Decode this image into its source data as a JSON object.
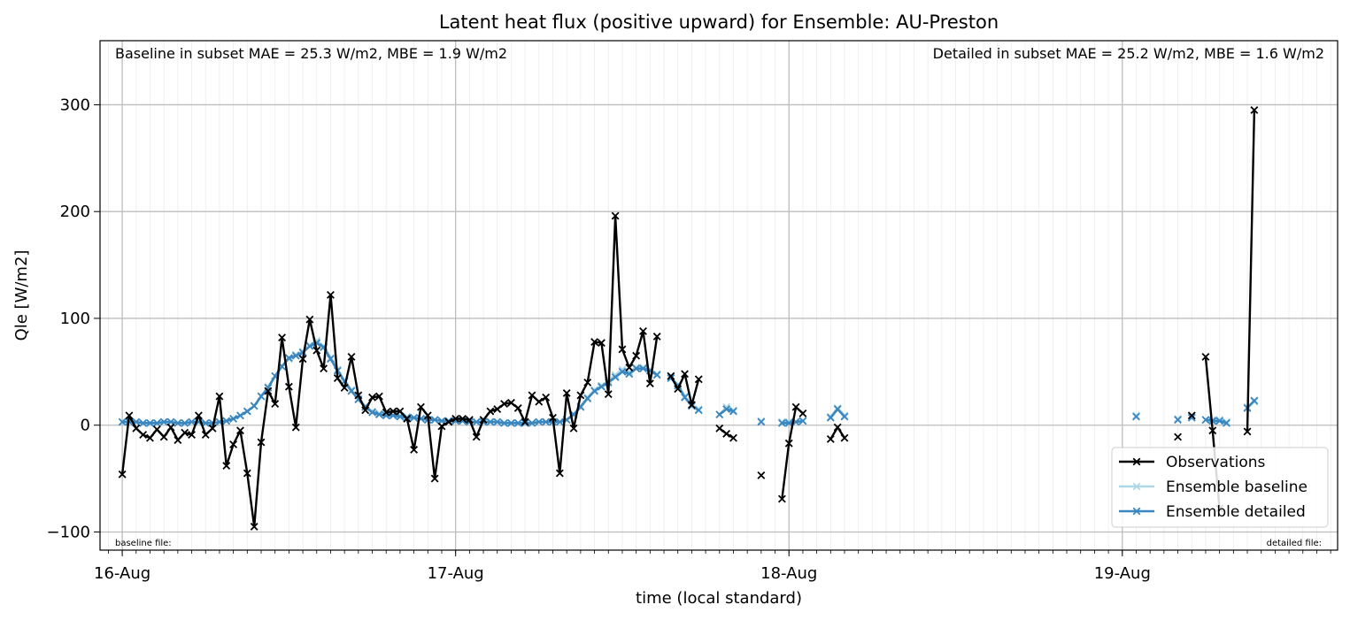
{
  "chart_data": {
    "type": "line",
    "title": "Latent heat flux (positive upward) for Ensemble: AU-Preston",
    "xlabel": "time (local standard)",
    "ylabel": "Qle [W/m2]",
    "x_units": "hours since 16-Aug 00:00 (local standard)",
    "xlim": [
      -1.6,
      87.5
    ],
    "ylim": [
      -117,
      360
    ],
    "yticks": [
      -100,
      0,
      100,
      200,
      300
    ],
    "ytick_labels": [
      "−100",
      "0",
      "100",
      "200",
      "300"
    ],
    "xticks": [
      0,
      24,
      48,
      72
    ],
    "xtick_labels": [
      "16-Aug",
      "17-Aug",
      "18-Aug",
      "19-Aug"
    ],
    "minor_tick_step_hours": 1,
    "grid": true,
    "legend_position": "lower-right",
    "annotations": {
      "top_left": "Baseline in subset MAE = 25.3 W/m2, MBE = 1.9 W/m2",
      "top_right": "Detailed in subset MAE = 25.2 W/m2, MBE = 1.6 W/m2",
      "bottom_left": "baseline file:",
      "bottom_right": "detailed file:"
    },
    "series": [
      {
        "name": "Observations",
        "color": "#000000",
        "marker": "x",
        "points": [
          [
            0,
            -46
          ],
          [
            0.5,
            9
          ],
          [
            1,
            -3
          ],
          [
            1.5,
            -9
          ],
          [
            2,
            -12
          ],
          [
            2.5,
            -4
          ],
          [
            3,
            -11
          ],
          [
            3.5,
            -2
          ],
          [
            4,
            -14
          ],
          [
            4.5,
            -7
          ],
          [
            5,
            -9
          ],
          [
            5.5,
            9
          ],
          [
            6,
            -9
          ],
          [
            6.5,
            -3
          ],
          [
            7,
            27
          ],
          [
            7.5,
            -38
          ],
          [
            8,
            -18
          ],
          [
            8.5,
            -5
          ],
          [
            9,
            -45
          ],
          [
            9.5,
            -95
          ],
          [
            10,
            -16
          ],
          [
            10.5,
            32
          ],
          [
            11,
            20
          ],
          [
            11.5,
            82
          ],
          [
            12,
            36
          ],
          [
            12.5,
            -2
          ],
          [
            13,
            62
          ],
          [
            13.5,
            99
          ],
          [
            14,
            70
          ],
          [
            14.5,
            53
          ],
          [
            15,
            122
          ],
          [
            15.5,
            44
          ],
          [
            16,
            35
          ],
          [
            16.5,
            64
          ],
          [
            17,
            28
          ],
          [
            17.5,
            14
          ],
          [
            18,
            26
          ],
          [
            18.5,
            27
          ],
          [
            19,
            12
          ],
          [
            19.5,
            13
          ],
          [
            20,
            13
          ],
          [
            20.5,
            6
          ],
          [
            21,
            -23
          ],
          [
            21.5,
            17
          ],
          [
            22,
            9
          ],
          [
            22.5,
            -50
          ],
          [
            23,
            -1
          ],
          [
            23.5,
            3
          ],
          [
            24,
            6
          ],
          [
            24.5,
            6
          ],
          [
            25,
            5
          ],
          [
            25.5,
            -11
          ],
          [
            26,
            5
          ],
          [
            26.5,
            13
          ],
          [
            27,
            15
          ],
          [
            27.5,
            20
          ],
          [
            28,
            21
          ],
          [
            28.5,
            16
          ],
          [
            29,
            3
          ],
          [
            29.5,
            28
          ],
          [
            30,
            22
          ],
          [
            30.5,
            26
          ],
          [
            31,
            7
          ],
          [
            31.5,
            -45
          ],
          [
            32,
            30
          ],
          [
            32.5,
            -3
          ],
          [
            33,
            28
          ],
          [
            33.5,
            40
          ],
          [
            34,
            78
          ],
          [
            34.5,
            77
          ],
          [
            35,
            29
          ],
          [
            35.5,
            196
          ],
          [
            36,
            71
          ],
          [
            36.5,
            54
          ],
          [
            37,
            65
          ],
          [
            37.5,
            88
          ],
          [
            38,
            39
          ],
          [
            38.5,
            83
          ],
          null,
          [
            39.5,
            46
          ],
          [
            40,
            34
          ],
          [
            40.5,
            48
          ],
          [
            41,
            19
          ],
          [
            41.5,
            43
          ],
          null,
          [
            43,
            -3
          ],
          [
            43.5,
            -8
          ],
          [
            44,
            -12
          ],
          null,
          [
            46,
            -47
          ],
          null,
          [
            47.5,
            -69
          ],
          [
            48,
            -17
          ],
          [
            48.5,
            17
          ],
          [
            49,
            11
          ],
          null,
          [
            51,
            -13
          ],
          [
            51.5,
            -2
          ],
          [
            52,
            -12
          ],
          null,
          [
            76,
            -11
          ],
          null,
          [
            77,
            9
          ],
          null,
          [
            78,
            64
          ],
          [
            78.5,
            -5
          ],
          [
            79,
            -78
          ],
          null,
          [
            81,
            -6
          ],
          [
            81.5,
            295
          ]
        ]
      },
      {
        "name": "Ensemble baseline",
        "color": "#add8e6",
        "marker": "x",
        "points": [
          [
            0,
            3
          ],
          [
            0.5,
            4
          ],
          [
            1,
            3
          ],
          [
            1.5,
            2
          ],
          [
            2,
            2
          ],
          [
            2.5,
            2
          ],
          [
            3,
            3
          ],
          [
            3.5,
            3
          ],
          [
            4,
            2
          ],
          [
            4.5,
            2
          ],
          [
            5,
            3
          ],
          [
            5.5,
            3
          ],
          [
            6,
            2
          ],
          [
            6.5,
            2
          ],
          [
            7,
            3
          ],
          [
            7.5,
            4
          ],
          [
            8,
            6
          ],
          [
            8.5,
            9
          ],
          [
            9,
            13
          ],
          [
            9.5,
            18
          ],
          [
            10,
            27
          ],
          [
            10.5,
            36
          ],
          [
            11,
            46
          ],
          [
            11.5,
            55
          ],
          [
            12,
            62
          ],
          [
            12.5,
            66
          ],
          [
            13,
            69
          ],
          [
            13.5,
            75
          ],
          [
            14,
            79
          ],
          [
            14.5,
            74
          ],
          [
            15,
            63
          ],
          [
            15.5,
            52
          ],
          [
            16,
            42
          ],
          [
            16.5,
            33
          ],
          [
            17,
            25
          ],
          [
            17.5,
            18
          ],
          [
            18,
            13
          ],
          [
            18.5,
            11
          ],
          [
            19,
            10
          ],
          [
            19.5,
            10
          ],
          [
            20,
            9
          ],
          [
            20.5,
            8
          ],
          [
            21,
            7
          ],
          [
            21.5,
            6
          ],
          [
            22,
            5
          ],
          [
            22.5,
            5
          ],
          [
            23,
            4
          ],
          [
            23.5,
            4
          ],
          [
            24,
            4
          ],
          [
            24.5,
            4
          ],
          [
            25,
            3
          ],
          [
            25.5,
            3
          ],
          [
            26,
            3
          ],
          [
            26.5,
            3
          ],
          [
            27,
            3
          ],
          [
            27.5,
            2
          ],
          [
            28,
            2
          ],
          [
            28.5,
            2
          ],
          [
            29,
            2
          ],
          [
            29.5,
            2
          ],
          [
            30,
            3
          ],
          [
            30.5,
            3
          ],
          [
            31,
            3
          ],
          [
            31.5,
            3
          ],
          [
            32,
            5
          ],
          [
            32.5,
            10
          ],
          [
            33,
            18
          ],
          [
            33.5,
            26
          ],
          [
            34,
            33
          ],
          [
            34.5,
            37
          ],
          [
            35,
            42
          ],
          [
            35.5,
            47
          ],
          [
            36,
            52
          ],
          [
            36.5,
            50
          ],
          [
            37,
            54
          ],
          [
            37.5,
            54
          ],
          [
            38,
            52
          ],
          [
            38.5,
            48
          ],
          null,
          [
            39.5,
            45
          ],
          [
            40,
            38
          ],
          [
            40.5,
            27
          ],
          [
            41,
            19
          ],
          [
            41.5,
            15
          ],
          null,
          [
            43,
            10
          ],
          [
            43.5,
            17
          ],
          [
            44,
            14
          ],
          null,
          [
            46,
            4
          ],
          null,
          [
            47.5,
            3
          ],
          [
            48,
            3
          ],
          [
            48.5,
            3
          ],
          [
            49,
            4
          ],
          null,
          [
            51,
            8
          ],
          [
            51.5,
            16
          ],
          [
            52,
            9
          ],
          null,
          [
            73,
            9
          ],
          null,
          [
            76,
            6
          ],
          null,
          [
            77,
            8
          ],
          null,
          [
            78,
            5
          ],
          [
            78.5,
            5
          ],
          [
            79,
            5
          ],
          [
            79.5,
            3
          ],
          null,
          [
            81,
            17
          ],
          [
            81.5,
            22
          ]
        ]
      },
      {
        "name": "Ensemble detailed",
        "color": "#3a87c0",
        "marker": "x",
        "points": [
          [
            0,
            3
          ],
          [
            0.5,
            3
          ],
          [
            1,
            3
          ],
          [
            1.5,
            2
          ],
          [
            2,
            2
          ],
          [
            2.5,
            2
          ],
          [
            3,
            3
          ],
          [
            3.5,
            3
          ],
          [
            4,
            2
          ],
          [
            4.5,
            2
          ],
          [
            5,
            3
          ],
          [
            5.5,
            3
          ],
          [
            6,
            2
          ],
          [
            6.5,
            2
          ],
          [
            7,
            3
          ],
          [
            7.5,
            4
          ],
          [
            8,
            6
          ],
          [
            8.5,
            9
          ],
          [
            9,
            13
          ],
          [
            9.5,
            18
          ],
          [
            10,
            27
          ],
          [
            10.5,
            35
          ],
          [
            11,
            46
          ],
          [
            11.5,
            55
          ],
          [
            12,
            63
          ],
          [
            12.5,
            65
          ],
          [
            13,
            68
          ],
          [
            13.5,
            74
          ],
          [
            14,
            77
          ],
          [
            14.5,
            73
          ],
          [
            15,
            62
          ],
          [
            15.5,
            51
          ],
          [
            16,
            41
          ],
          [
            16.5,
            32
          ],
          [
            17,
            24
          ],
          [
            17.5,
            17
          ],
          [
            18,
            12
          ],
          [
            18.5,
            10
          ],
          [
            19,
            9
          ],
          [
            19.5,
            9
          ],
          [
            20,
            8
          ],
          [
            20.5,
            7
          ],
          [
            21,
            7
          ],
          [
            21.5,
            6
          ],
          [
            22,
            5
          ],
          [
            22.5,
            5
          ],
          [
            23,
            4
          ],
          [
            23.5,
            4
          ],
          [
            24,
            4
          ],
          [
            24.5,
            4
          ],
          [
            25,
            3
          ],
          [
            25.5,
            3
          ],
          [
            26,
            3
          ],
          [
            26.5,
            3
          ],
          [
            27,
            3
          ],
          [
            27.5,
            2
          ],
          [
            28,
            2
          ],
          [
            28.5,
            2
          ],
          [
            29,
            2
          ],
          [
            29.5,
            2
          ],
          [
            30,
            3
          ],
          [
            30.5,
            3
          ],
          [
            31,
            3
          ],
          [
            31.5,
            3
          ],
          [
            32,
            5
          ],
          [
            32.5,
            10
          ],
          [
            33,
            17
          ],
          [
            33.5,
            25
          ],
          [
            34,
            32
          ],
          [
            34.5,
            36
          ],
          [
            35,
            40
          ],
          [
            35.5,
            45
          ],
          [
            36,
            50
          ],
          [
            36.5,
            48
          ],
          [
            37,
            53
          ],
          [
            37.5,
            53
          ],
          [
            38,
            51
          ],
          [
            38.5,
            47
          ],
          null,
          [
            39.5,
            44
          ],
          [
            40,
            37
          ],
          [
            40.5,
            26
          ],
          [
            41,
            18
          ],
          [
            41.5,
            14
          ],
          null,
          [
            43,
            10
          ],
          [
            43.5,
            15
          ],
          [
            44,
            13
          ],
          null,
          [
            46,
            3
          ],
          null,
          [
            47.5,
            2
          ],
          [
            48,
            2
          ],
          [
            48.5,
            3
          ],
          [
            49,
            4
          ],
          null,
          [
            51,
            7
          ],
          [
            51.5,
            15
          ],
          [
            52,
            8
          ],
          null,
          [
            73,
            8
          ],
          null,
          [
            76,
            5
          ],
          null,
          [
            77,
            7
          ],
          null,
          [
            78,
            5
          ],
          [
            78.5,
            4
          ],
          [
            79,
            4
          ],
          [
            79.5,
            2
          ],
          null,
          [
            81,
            16
          ],
          [
            81.5,
            23
          ]
        ]
      }
    ]
  }
}
